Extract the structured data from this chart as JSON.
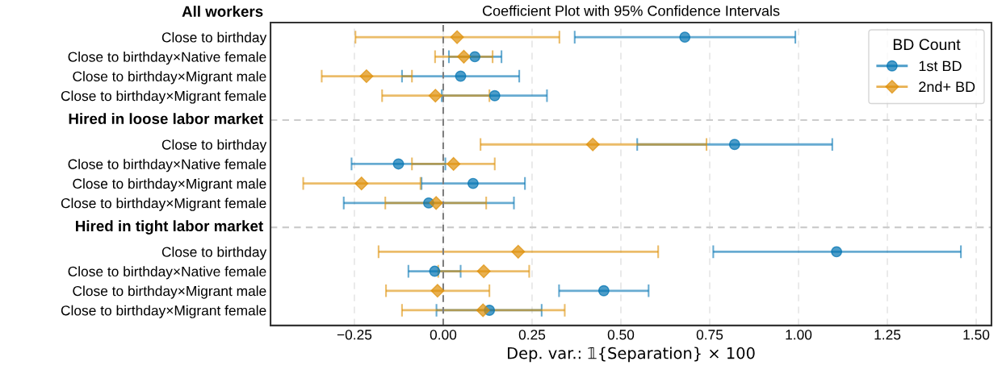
{
  "chart_data": {
    "type": "scatter",
    "orientation": "horizontal",
    "title": "Coefficient Plot with 95% Confidence Intervals",
    "xlabel": "Dep. var.: 𝟙{Separation} × 100",
    "legend_title": "BD Count",
    "legend": "top right",
    "grid": "x",
    "categories": [
      "All workers",
      "Close to birthday",
      "Close to birthday×Native female",
      "Close to birthday×Migrant male",
      "Close to birthday×Migrant female",
      "Hired in loose labor market",
      "Close to birthday",
      "Close to birthday×Native female",
      "Close to birthday×Migrant male",
      "Close to birthday×Migrant female",
      "Hired in tight labor market",
      "Close to birthday",
      "Close to birthday×Native female",
      "Close to birthday×Migrant male",
      "Close to birthday×Migrant female"
    ],
    "xlim": [
      -0.486,
      1.543
    ],
    "xticks": [
      {
        "value": -0.25,
        "label": "−0.25"
      },
      {
        "value": 0,
        "label": "0.00"
      },
      {
        "value": 0.25,
        "label": "0.25"
      },
      {
        "value": 0.5,
        "label": "0.50"
      },
      {
        "value": 0.75,
        "label": "0.75"
      },
      {
        "value": 1.0,
        "label": "1.00"
      },
      {
        "value": 1.25,
        "label": "1.25"
      },
      {
        "value": 1.5,
        "label": "1.50"
      }
    ],
    "ref_lines": [
      {
        "axis": "x",
        "value": 0,
        "color": "#7f7f7f",
        "line_style": "dashed"
      },
      {
        "axis": "y",
        "value": "Hired in loose labor market",
        "color": "#cccccc",
        "line_style": "dashed"
      },
      {
        "axis": "y",
        "value": "Hired in tight labor market",
        "color": "#cccccc",
        "line_style": "dashed"
      }
    ],
    "series": [
      {
        "name": "1st BD",
        "color": "#0173b2",
        "marker": "circle",
        "values": [
          null,
          0.68,
          0.089,
          0.049,
          0.145,
          null,
          0.82,
          -0.126,
          0.084,
          -0.041,
          null,
          1.107,
          -0.024,
          0.452,
          0.13
        ],
        "errors": [
          null,
          [
            0.37,
            0.991
          ],
          [
            0.016,
            0.164
          ],
          [
            -0.116,
            0.214
          ],
          [
            -0.004,
            0.292
          ],
          null,
          [
            0.546,
            1.095
          ],
          [
            -0.258,
            0.006
          ],
          [
            -0.061,
            0.23
          ],
          [
            -0.28,
            0.199
          ],
          null,
          [
            0.76,
            1.457
          ],
          [
            -0.098,
            0.049
          ],
          [
            0.326,
            0.578
          ],
          [
            -0.019,
            0.277
          ]
        ]
      },
      {
        "name": "2nd+ BD",
        "color": "#de8f05",
        "marker": "diamond",
        "values": [
          null,
          0.039,
          0.058,
          -0.216,
          -0.022,
          null,
          0.421,
          0.029,
          -0.23,
          -0.02,
          null,
          0.211,
          0.114,
          -0.016,
          0.112
        ],
        "errors": [
          null,
          [
            -0.247,
            0.327
          ],
          [
            -0.023,
            0.139
          ],
          [
            -0.342,
            -0.088
          ],
          [
            -0.172,
            0.13
          ],
          null,
          [
            0.105,
            0.741
          ],
          [
            -0.088,
            0.145
          ],
          [
            -0.394,
            -0.064
          ],
          [
            -0.163,
            0.121
          ],
          null,
          [
            -0.182,
            0.605
          ],
          [
            -0.014,
            0.242
          ],
          [
            -0.161,
            0.13
          ],
          [
            -0.116,
            0.342
          ]
        ]
      }
    ]
  }
}
